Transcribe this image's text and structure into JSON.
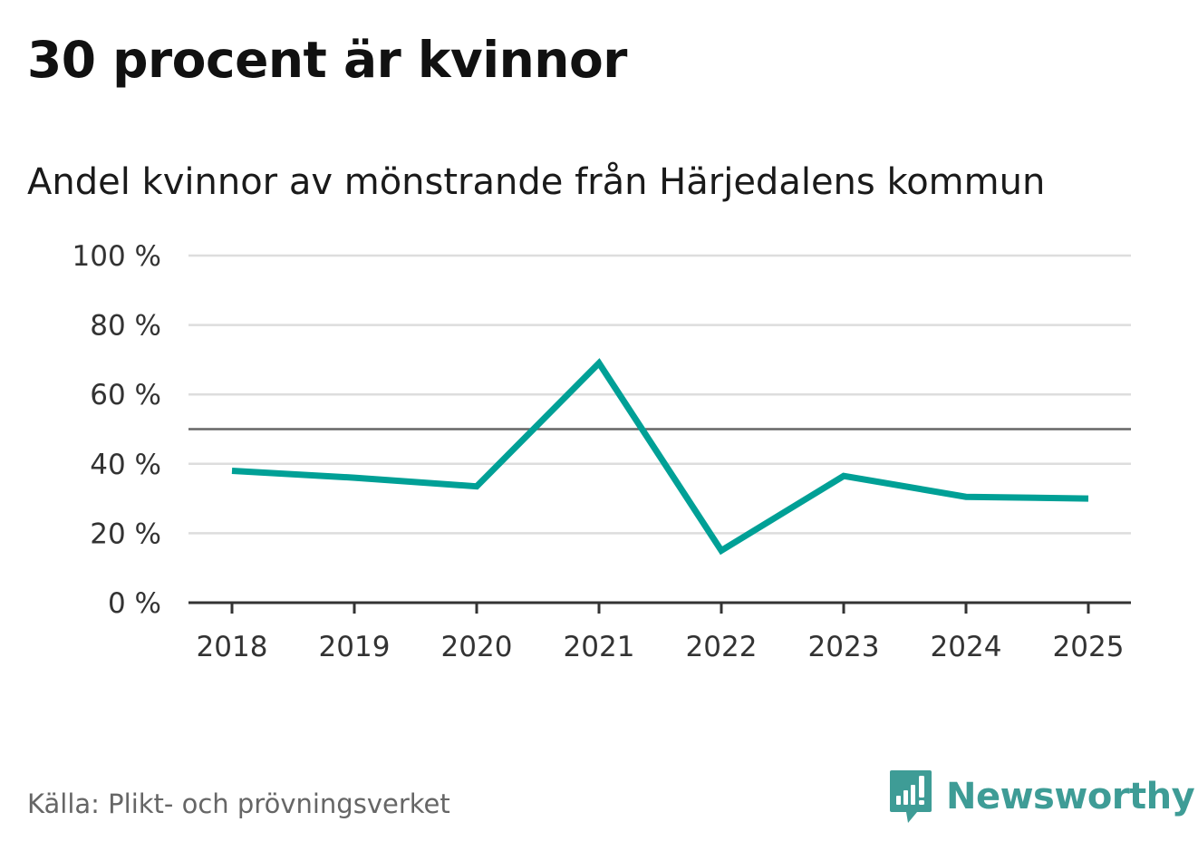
{
  "header": {
    "title": "30 procent är kvinnor",
    "subtitle": "Andel kvinnor av mönstrande från Härjedalens kommun"
  },
  "footer": {
    "source": "Källa: Plikt- och prövningsverket",
    "brand": "Newsworthy",
    "brand_icon": "newsworthy-logo-icon"
  },
  "colors": {
    "line": "#00a096",
    "grid": "#dddddd",
    "reference": "#666666",
    "axis": "#333333",
    "brand": "#3e9c96"
  },
  "chart_data": {
    "type": "line",
    "title": "Andel kvinnor av mönstrande från Härjedalens kommun",
    "xlabel": "",
    "ylabel": "",
    "categories": [
      "2018",
      "2019",
      "2020",
      "2021",
      "2022",
      "2023",
      "2024",
      "2025"
    ],
    "series": [
      {
        "name": "Andel kvinnor",
        "values": [
          38,
          36,
          33.5,
          69,
          15,
          36.5,
          30.5,
          30
        ]
      }
    ],
    "ylim": [
      0,
      100
    ],
    "yticks": [
      0,
      20,
      40,
      60,
      80,
      100
    ],
    "ytick_labels": [
      "0 %",
      "20 %",
      "40 %",
      "60 %",
      "80 %",
      "100 %"
    ],
    "reference_line": 50,
    "grid": true
  }
}
